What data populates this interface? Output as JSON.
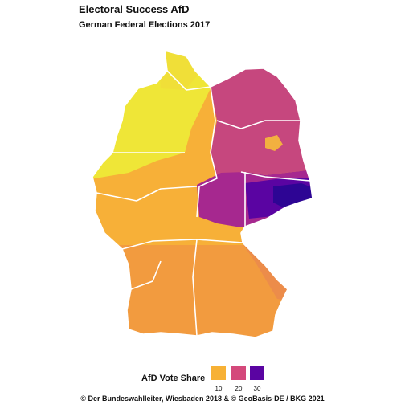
{
  "title": "Electoral Success AfD",
  "subtitle": "German Federal Elections 2017",
  "legend": {
    "title": "AfD Vote Share",
    "keys": [
      {
        "label": "10",
        "color": "#f7b135"
      },
      {
        "label": "20",
        "color": "#d4497b"
      },
      {
        "label": "30",
        "color": "#5a04a2"
      }
    ]
  },
  "caption": "© Der Bundeswahlleiter, Wiesbaden 2018 & © GeoBasis-DE / BKG 2021",
  "map_colors": {
    "north_west_low": "#efe637",
    "west": "#f7b038",
    "south": "#f29b3f",
    "east_north": "#c6477e",
    "east_mid": "#a6288f",
    "east_high": "#5a04a2",
    "east_peak": "#2d0594",
    "border": "#ffffff"
  }
}
